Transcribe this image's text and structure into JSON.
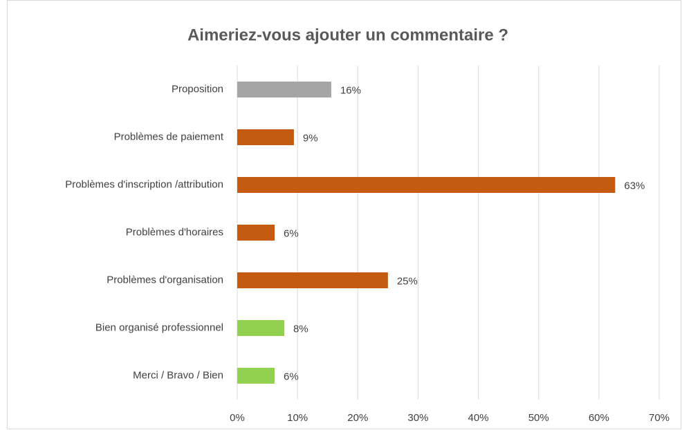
{
  "chart_data": {
    "type": "hbar",
    "title": "Aimeriez-vous ajouter un commentaire ?",
    "categories": [
      "Proposition",
      "Problèmes de paiement",
      "Problèmes d'inscription /attribution",
      "Problèmes d'horaires",
      "Problèmes d'organisation",
      "Bien organisé professionnel",
      "Merci / Bravo / Bien"
    ],
    "values": [
      15.6,
      9.4,
      62.7,
      6.2,
      25.0,
      7.8,
      6.2
    ],
    "value_labels": [
      "16%",
      "9%",
      "63%",
      "6%",
      "25%",
      "8%",
      "6%"
    ],
    "colors": [
      "#a5a5a5",
      "#c55a11",
      "#c55a11",
      "#c55a11",
      "#c55a11",
      "#92d050",
      "#92d050"
    ],
    "xlim": [
      0,
      70
    ],
    "xticks": [
      {
        "value": 0,
        "label": "0%"
      },
      {
        "value": 10,
        "label": "10%"
      },
      {
        "value": 20,
        "label": "20%"
      },
      {
        "value": 30,
        "label": "30%"
      },
      {
        "value": 40,
        "label": "40%"
      },
      {
        "value": 50,
        "label": "50%"
      },
      {
        "value": 60,
        "label": "60%"
      },
      {
        "value": 70,
        "label": "70%"
      }
    ],
    "grid": true
  }
}
